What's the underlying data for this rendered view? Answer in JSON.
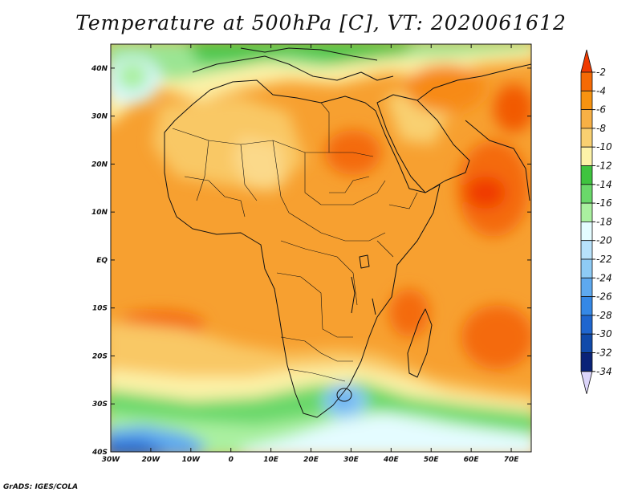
{
  "title": "Temperature at 500hPa [C], VT: 2020061612",
  "footer": "GrADS: IGES/COLA",
  "map": {
    "lon_range": [
      -30,
      75
    ],
    "lat_range": [
      -40,
      45
    ],
    "lat_ticks": [
      {
        "value": 40,
        "label": "40N"
      },
      {
        "value": 30,
        "label": "30N"
      },
      {
        "value": 20,
        "label": "20N"
      },
      {
        "value": 10,
        "label": "10N"
      },
      {
        "value": 0,
        "label": "EQ"
      },
      {
        "value": -10,
        "label": "10S"
      },
      {
        "value": -20,
        "label": "20S"
      },
      {
        "value": -30,
        "label": "30S"
      },
      {
        "value": -40,
        "label": "40S"
      }
    ],
    "lon_ticks": [
      {
        "value": -30,
        "label": "30W"
      },
      {
        "value": -20,
        "label": "20W"
      },
      {
        "value": -10,
        "label": "10W"
      },
      {
        "value": 0,
        "label": "0"
      },
      {
        "value": 10,
        "label": "10E"
      },
      {
        "value": 20,
        "label": "20E"
      },
      {
        "value": 30,
        "label": "30E"
      },
      {
        "value": 40,
        "label": "40E"
      },
      {
        "value": 50,
        "label": "50E"
      },
      {
        "value": 60,
        "label": "60E"
      },
      {
        "value": 70,
        "label": "70E"
      }
    ]
  },
  "colorbar": {
    "labels": [
      "-2",
      "-4",
      "-6",
      "-8",
      "-10",
      "-12",
      "-14",
      "-16",
      "-18",
      "-20",
      "-22",
      "-24",
      "-26",
      "-28",
      "-30",
      "-32",
      "-34"
    ],
    "colors": [
      "#f03a00",
      "#f56a05",
      "#f79310",
      "#f7b045",
      "#f9d071",
      "#fdf2a8",
      "#3fc43f",
      "#6ad86a",
      "#aaf0a0",
      "#e4fcff",
      "#b8e2fb",
      "#8ecbf5",
      "#5ea9ef",
      "#3588e6",
      "#1f66cf",
      "#104aaa",
      "#0a2378",
      "#dcd5fa"
    ]
  }
}
